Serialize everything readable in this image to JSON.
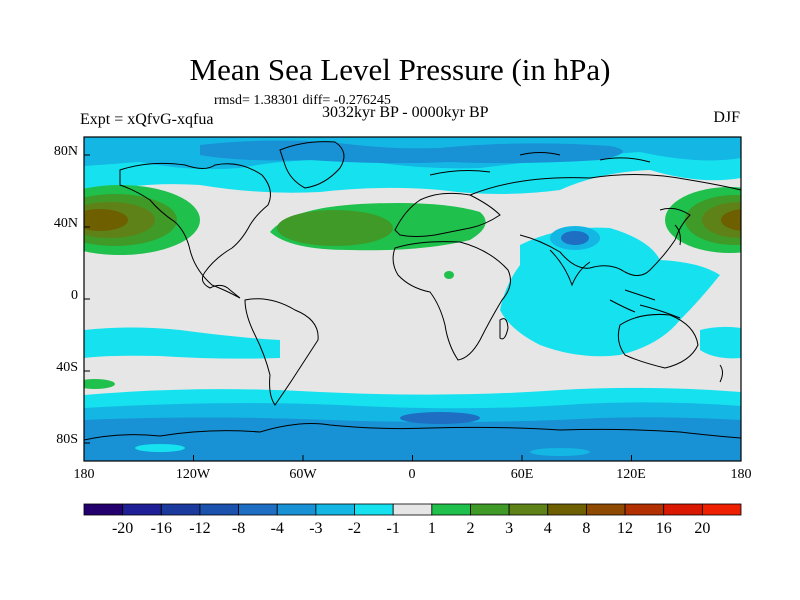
{
  "title": "Mean Sea Level Pressure (in hPa)",
  "stats": "rmsd= 1.38301 diff= -0.276245",
  "experiment": "Expt = xQfvG-xqfua",
  "period": "3032kyr BP - 0000kyr BP",
  "season": "DJF",
  "lat_labels": [
    "80N",
    "40N",
    "0",
    "40S",
    "80S"
  ],
  "lon_labels": [
    "180",
    "120W",
    "60W",
    "0",
    "60E",
    "120E",
    "180"
  ],
  "colorbar": {
    "labels": [
      "-20",
      "-16",
      "-12",
      "-8",
      "-4",
      "-3",
      "-2",
      "-1",
      "1",
      "2",
      "3",
      "4",
      "8",
      "12",
      "16",
      "20"
    ],
    "colors": [
      "#23006e",
      "#1e1e96",
      "#1a3a9e",
      "#1b52ae",
      "#1e6ec4",
      "#1891d5",
      "#14b6e4",
      "#16e2ef",
      "#e6e6e6",
      "#20c04c",
      "#3f9a28",
      "#5f8218",
      "#6e6000",
      "#8e4a00",
      "#b23000",
      "#da1800",
      "#ee2000"
    ]
  },
  "map": {
    "ocean_background": "#e6e6e6",
    "field_colors": {
      "neg1": "#16e2ef",
      "neg2": "#14b6e4",
      "neg3": "#1891d5",
      "neg4": "#1e6ec4",
      "neg8": "#1b52ae",
      "pos2": "#20c04c",
      "pos3": "#3f9a28",
      "pos4": "#5f8218",
      "pos8": "#6e6000"
    }
  }
}
